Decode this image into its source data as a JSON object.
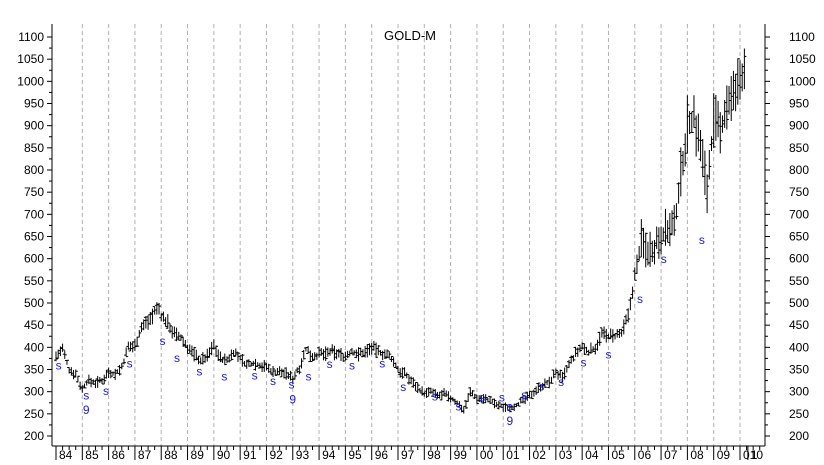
{
  "chart_data": {
    "type": "ohlc",
    "title": "GOLD-M",
    "xlabel": "",
    "ylabel": "",
    "grid": "vertical dashed",
    "ylim": [
      185,
      1125
    ],
    "xlim": [
      1984.0,
      2010.4
    ],
    "y_ticks": [
      200,
      250,
      300,
      350,
      400,
      450,
      500,
      550,
      600,
      650,
      700,
      750,
      800,
      850,
      900,
      950,
      1000,
      1050,
      1100
    ],
    "x_ticks": [
      {
        "label": "84",
        "x": 1984
      },
      {
        "label": "85",
        "x": 1985
      },
      {
        "label": "86",
        "x": 1986
      },
      {
        "label": "87",
        "x": 1987
      },
      {
        "label": "88",
        "x": 1988
      },
      {
        "label": "89",
        "x": 1989
      },
      {
        "label": "90",
        "x": 1990
      },
      {
        "label": "91",
        "x": 1991
      },
      {
        "label": "92",
        "x": 1992
      },
      {
        "label": "93",
        "x": 1993
      },
      {
        "label": "94",
        "x": 1994
      },
      {
        "label": "95",
        "x": 1995
      },
      {
        "label": "96",
        "x": 1996
      },
      {
        "label": "97",
        "x": 1997
      },
      {
        "label": "98",
        "x": 1998
      },
      {
        "label": "99",
        "x": 1999
      },
      {
        "label": "00",
        "x": 2000
      },
      {
        "label": "01",
        "x": 2001
      },
      {
        "label": "02",
        "x": 2002
      },
      {
        "label": "03",
        "x": 2003
      },
      {
        "label": "04",
        "x": 2004
      },
      {
        "label": "05",
        "x": 2005
      },
      {
        "label": "06",
        "x": 2006
      },
      {
        "label": "07",
        "x": 2007
      },
      {
        "label": "08",
        "x": 2008
      },
      {
        "label": "09",
        "x": 2009
      },
      {
        "label": "010",
        "x": 2010
      },
      {
        "label": "1",
        "x": 2010.3
      }
    ],
    "series": [
      {
        "price_points": [
          [
            1984.0,
            380
          ],
          [
            1984.25,
            395
          ],
          [
            1984.5,
            350
          ],
          [
            1984.75,
            340
          ],
          [
            1985.0,
            305
          ],
          [
            1985.2,
            325
          ],
          [
            1985.5,
            320
          ],
          [
            1985.75,
            325
          ],
          [
            1986.0,
            345
          ],
          [
            1986.25,
            340
          ],
          [
            1986.5,
            355
          ],
          [
            1986.75,
            400
          ],
          [
            1987.0,
            405
          ],
          [
            1987.25,
            445
          ],
          [
            1987.5,
            460
          ],
          [
            1987.75,
            480
          ],
          [
            1987.9,
            490
          ],
          [
            1988.0,
            470
          ],
          [
            1988.25,
            455
          ],
          [
            1988.5,
            430
          ],
          [
            1988.75,
            420
          ],
          [
            1989.0,
            400
          ],
          [
            1989.25,
            385
          ],
          [
            1989.5,
            370
          ],
          [
            1989.75,
            380
          ],
          [
            1990.0,
            405
          ],
          [
            1990.25,
            375
          ],
          [
            1990.5,
            370
          ],
          [
            1990.75,
            390
          ],
          [
            1991.0,
            375
          ],
          [
            1991.25,
            360
          ],
          [
            1991.5,
            365
          ],
          [
            1991.75,
            360
          ],
          [
            1992.0,
            355
          ],
          [
            1992.25,
            345
          ],
          [
            1992.5,
            345
          ],
          [
            1992.75,
            340
          ],
          [
            1993.0,
            330
          ],
          [
            1993.25,
            355
          ],
          [
            1993.5,
            395
          ],
          [
            1993.75,
            380
          ],
          [
            1994.0,
            385
          ],
          [
            1994.25,
            385
          ],
          [
            1994.5,
            390
          ],
          [
            1994.75,
            385
          ],
          [
            1995.0,
            380
          ],
          [
            1995.25,
            390
          ],
          [
            1995.5,
            385
          ],
          [
            1995.75,
            390
          ],
          [
            1996.0,
            400
          ],
          [
            1996.25,
            390
          ],
          [
            1996.5,
            385
          ],
          [
            1996.75,
            375
          ],
          [
            1997.0,
            350
          ],
          [
            1997.25,
            340
          ],
          [
            1997.5,
            325
          ],
          [
            1997.75,
            310
          ],
          [
            1998.0,
            295
          ],
          [
            1998.25,
            300
          ],
          [
            1998.5,
            290
          ],
          [
            1998.75,
            295
          ],
          [
            1999.0,
            285
          ],
          [
            1999.25,
            275
          ],
          [
            1999.5,
            260
          ],
          [
            1999.75,
            300
          ],
          [
            2000.0,
            285
          ],
          [
            2000.25,
            285
          ],
          [
            2000.5,
            280
          ],
          [
            2000.75,
            270
          ],
          [
            2001.0,
            265
          ],
          [
            2001.25,
            265
          ],
          [
            2001.5,
            270
          ],
          [
            2001.75,
            280
          ],
          [
            2002.0,
            290
          ],
          [
            2002.25,
            305
          ],
          [
            2002.5,
            315
          ],
          [
            2002.75,
            320
          ],
          [
            2003.0,
            345
          ],
          [
            2003.25,
            330
          ],
          [
            2003.5,
            360
          ],
          [
            2003.75,
            385
          ],
          [
            2004.0,
            400
          ],
          [
            2004.25,
            390
          ],
          [
            2004.5,
            400
          ],
          [
            2004.75,
            430
          ],
          [
            2005.0,
            425
          ],
          [
            2005.25,
            425
          ],
          [
            2005.5,
            430
          ],
          [
            2005.75,
            470
          ],
          [
            2006.0,
            560
          ],
          [
            2006.25,
            640
          ],
          [
            2006.5,
            620
          ],
          [
            2006.75,
            630
          ],
          [
            2007.0,
            655
          ],
          [
            2007.25,
            665
          ],
          [
            2007.5,
            670
          ],
          [
            2007.75,
            790
          ],
          [
            2008.0,
            900
          ],
          [
            2008.25,
            920
          ],
          [
            2008.5,
            850
          ],
          [
            2008.75,
            760
          ],
          [
            2009.0,
            910
          ],
          [
            2009.25,
            880
          ],
          [
            2009.5,
            950
          ],
          [
            2009.75,
            960
          ],
          [
            2010.0,
            1000
          ],
          [
            2010.2,
            1040
          ]
        ]
      }
    ],
    "markers": [
      {
        "label": "s",
        "x": 1984.1,
        "y": 350
      },
      {
        "label": "s",
        "x": 1985.15,
        "y": 282
      },
      {
        "label": "9",
        "x": 1985.15,
        "y": 250
      },
      {
        "label": "s",
        "x": 1985.9,
        "y": 293
      },
      {
        "label": "s",
        "x": 1986.8,
        "y": 355
      },
      {
        "label": "s",
        "x": 1988.05,
        "y": 405
      },
      {
        "label": "s",
        "x": 1988.6,
        "y": 367
      },
      {
        "label": "s",
        "x": 1989.45,
        "y": 337
      },
      {
        "label": "s",
        "x": 1990.4,
        "y": 325
      },
      {
        "label": "s",
        "x": 1991.55,
        "y": 327
      },
      {
        "label": "s",
        "x": 1992.25,
        "y": 315
      },
      {
        "label": "s",
        "x": 1992.95,
        "y": 307
      },
      {
        "label": "9",
        "x": 1993.0,
        "y": 273
      },
      {
        "label": "s",
        "x": 1993.6,
        "y": 325
      },
      {
        "label": "s",
        "x": 1994.4,
        "y": 353
      },
      {
        "label": "s",
        "x": 1995.25,
        "y": 350
      },
      {
        "label": "s",
        "x": 1996.4,
        "y": 355
      },
      {
        "label": "s",
        "x": 1997.2,
        "y": 302
      },
      {
        "label": "s",
        "x": 1998.4,
        "y": 280
      },
      {
        "label": "s",
        "x": 1999.3,
        "y": 258
      },
      {
        "label": "s",
        "x": 2000.2,
        "y": 278
      },
      {
        "label": "s",
        "x": 2000.95,
        "y": 278
      },
      {
        "label": "s",
        "x": 2001.25,
        "y": 257
      },
      {
        "label": "9",
        "x": 2001.25,
        "y": 225
      },
      {
        "label": "s",
        "x": 2001.8,
        "y": 283
      },
      {
        "label": "s",
        "x": 2002.45,
        "y": 303
      },
      {
        "label": "s",
        "x": 2003.2,
        "y": 313
      },
      {
        "label": "s",
        "x": 2004.05,
        "y": 357
      },
      {
        "label": "s",
        "x": 2005.0,
        "y": 375
      },
      {
        "label": "s",
        "x": 2006.2,
        "y": 500
      },
      {
        "label": "s",
        "x": 2007.1,
        "y": 590
      },
      {
        "label": "s",
        "x": 2008.55,
        "y": 633
      }
    ]
  }
}
